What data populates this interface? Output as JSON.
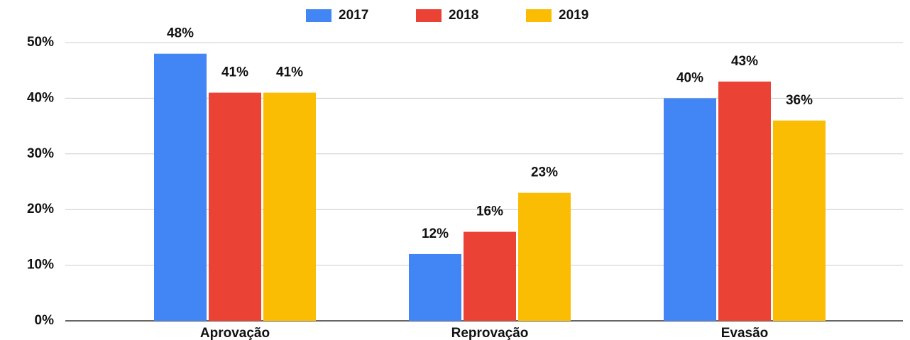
{
  "chart_data": {
    "type": "bar",
    "categories": [
      "Aprovação",
      "Reprovação",
      "Evasão"
    ],
    "series": [
      {
        "name": "2017",
        "color": "#4285f4",
        "values": [
          48,
          12,
          40
        ],
        "value_labels": [
          "48%",
          "12%",
          "40%"
        ]
      },
      {
        "name": "2018",
        "color": "#ea4335",
        "values": [
          41,
          16,
          43
        ],
        "value_labels": [
          "41%",
          "16%",
          "43%"
        ]
      },
      {
        "name": "2019",
        "color": "#fbbc04",
        "values": [
          41,
          23,
          36
        ],
        "value_labels": [
          "41%",
          "23%",
          "36%"
        ]
      }
    ],
    "ylim": [
      0,
      50
    ],
    "yticks": [
      {
        "value": 0,
        "label": "0%"
      },
      {
        "value": 10,
        "label": "10%"
      },
      {
        "value": 20,
        "label": "20%"
      },
      {
        "value": 30,
        "label": "30%"
      },
      {
        "value": 40,
        "label": "40%"
      },
      {
        "value": 50,
        "label": "50%"
      }
    ],
    "grid": true,
    "legend": "top"
  }
}
